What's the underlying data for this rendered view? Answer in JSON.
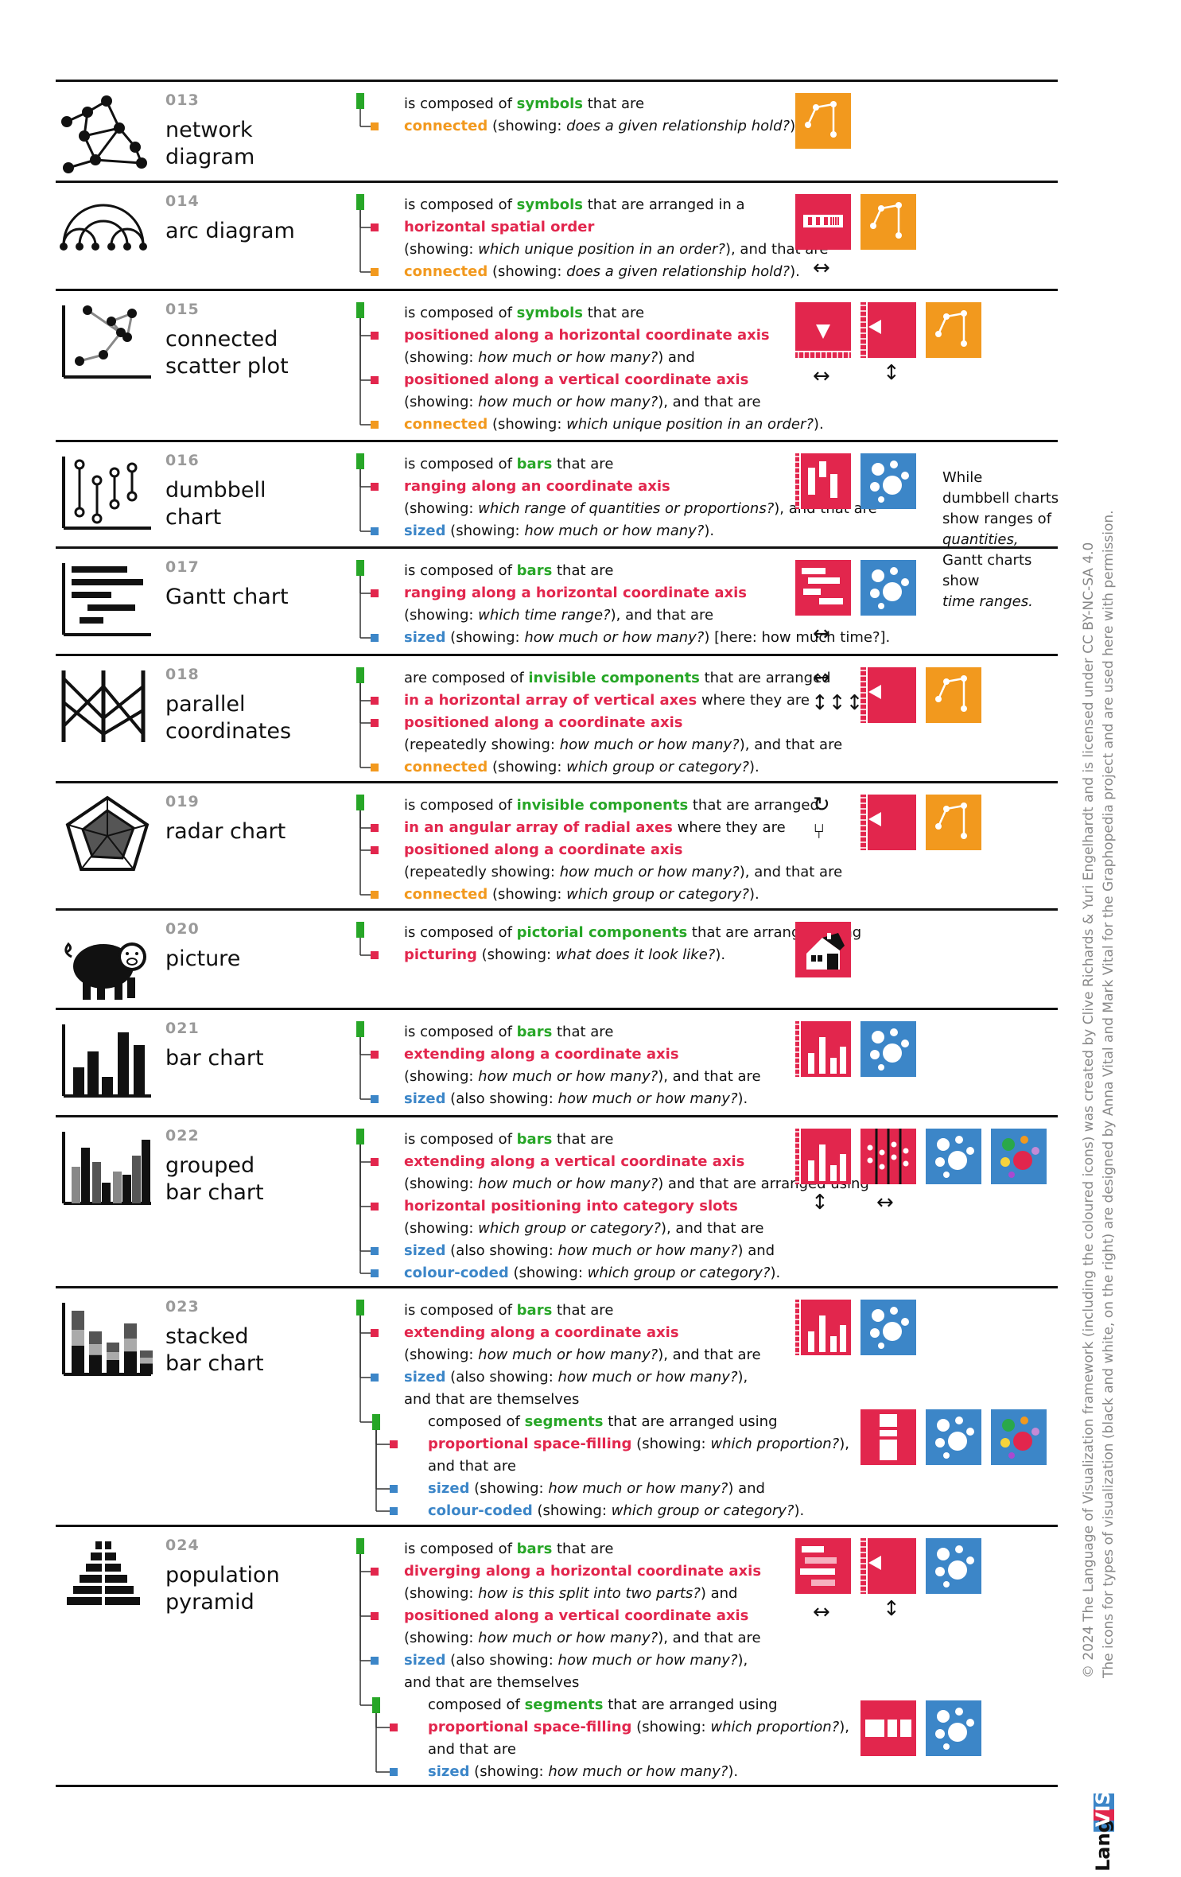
{
  "rows": [
    {
      "id": "013",
      "name": [
        "network",
        "diagram"
      ],
      "lines": [
        {
          "p": [
            {
              "t": "is composed of "
            },
            {
              "t": "symbols",
              "c": "g"
            },
            {
              "t": " that are"
            }
          ]
        },
        {
          "p": [
            {
              "t": "connected",
              "c": "o"
            },
            {
              "t": " (showing: "
            },
            {
              "t": "does a given relationship hold?",
              "c": "it"
            },
            {
              "t": ")."
            }
          ]
        }
      ]
    },
    {
      "id": "014",
      "name": [
        "arc diagram"
      ],
      "lines": [
        {
          "p": [
            {
              "t": "is composed of "
            },
            {
              "t": "symbols",
              "c": "g"
            },
            {
              "t": " that are arranged in a"
            }
          ]
        },
        {
          "p": [
            {
              "t": "horizontal spatial order",
              "c": "r"
            }
          ]
        },
        {
          "p": [
            {
              "t": "(showing: "
            },
            {
              "t": "which unique position in an order?",
              "c": "it"
            },
            {
              "t": "), and that are"
            }
          ]
        },
        {
          "p": [
            {
              "t": "connected",
              "c": "o"
            },
            {
              "t": " (showing: "
            },
            {
              "t": "does a given relationship hold?",
              "c": "it"
            },
            {
              "t": ")."
            }
          ]
        }
      ]
    },
    {
      "id": "015",
      "name": [
        "connected",
        "scatter plot"
      ],
      "lines": [
        {
          "p": [
            {
              "t": "is composed of "
            },
            {
              "t": "symbols",
              "c": "g"
            },
            {
              "t": " that are"
            }
          ]
        },
        {
          "p": [
            {
              "t": "positioned along a horizontal coordinate axis",
              "c": "r"
            }
          ]
        },
        {
          "p": [
            {
              "t": "(showing: "
            },
            {
              "t": "how much or how many?",
              "c": "it"
            },
            {
              "t": ") and"
            }
          ]
        },
        {
          "p": [
            {
              "t": "positioned along a vertical coordinate axis",
              "c": "r"
            }
          ]
        },
        {
          "p": [
            {
              "t": "(showing: "
            },
            {
              "t": "how much or how many?",
              "c": "it"
            },
            {
              "t": "), and that are"
            }
          ]
        },
        {
          "p": [
            {
              "t": "connected",
              "c": "o"
            },
            {
              "t": " (showing: "
            },
            {
              "t": "which unique position in an order?",
              "c": "it"
            },
            {
              "t": ")."
            }
          ]
        }
      ]
    },
    {
      "id": "016",
      "name": [
        "dumbbell",
        "chart"
      ],
      "lines": [
        {
          "p": [
            {
              "t": "is composed of "
            },
            {
              "t": "bars",
              "c": "g"
            },
            {
              "t": " that are"
            }
          ]
        },
        {
          "p": [
            {
              "t": "ranging along an coordinate axis",
              "c": "r"
            }
          ]
        },
        {
          "p": [
            {
              "t": "(showing: "
            },
            {
              "t": "which range of quantities or proportions?",
              "c": "it"
            },
            {
              "t": "), and that are"
            }
          ]
        },
        {
          "p": [
            {
              "t": "sized",
              "c": "b"
            },
            {
              "t": " (showing: "
            },
            {
              "t": "how much or how many?",
              "c": "it"
            },
            {
              "t": ")."
            }
          ]
        }
      ]
    },
    {
      "id": "017",
      "name": [
        "Gantt chart"
      ],
      "lines": [
        {
          "p": [
            {
              "t": "is composed of "
            },
            {
              "t": "bars",
              "c": "g"
            },
            {
              "t": " that are"
            }
          ]
        },
        {
          "p": [
            {
              "t": "ranging along a horizontal coordinate axis",
              "c": "r"
            }
          ]
        },
        {
          "p": [
            {
              "t": "(showing: "
            },
            {
              "t": "which time range?",
              "c": "it"
            },
            {
              "t": "), and that are"
            }
          ]
        },
        {
          "p": [
            {
              "t": "sized",
              "c": "b"
            },
            {
              "t": " (showing: "
            },
            {
              "t": "how much or how many?",
              "c": "it"
            },
            {
              "t": ") [here: how much time?]."
            }
          ]
        }
      ]
    },
    {
      "id": "018",
      "name": [
        "parallel",
        "coordinates"
      ],
      "lines": [
        {
          "p": [
            {
              "t": "are composed of "
            },
            {
              "t": "invisible components",
              "c": "g"
            },
            {
              "t": " that are arranged"
            }
          ]
        },
        {
          "p": [
            {
              "t": "in a horizontal array of vertical axes",
              "c": "r"
            },
            {
              "t": " where they are"
            }
          ]
        },
        {
          "p": [
            {
              "t": "positioned along a coordinate axis",
              "c": "r"
            }
          ]
        },
        {
          "p": [
            {
              "t": "(repeatedly showing: "
            },
            {
              "t": "how much or how many?",
              "c": "it"
            },
            {
              "t": "), and that are"
            }
          ]
        },
        {
          "p": [
            {
              "t": "connected",
              "c": "o"
            },
            {
              "t": " (showing: "
            },
            {
              "t": "which group or category?",
              "c": "it"
            },
            {
              "t": ")."
            }
          ]
        }
      ]
    },
    {
      "id": "019",
      "name": [
        "radar chart"
      ],
      "lines": [
        {
          "p": [
            {
              "t": "is composed of "
            },
            {
              "t": "invisible components",
              "c": "g"
            },
            {
              "t": " that are arranged"
            }
          ]
        },
        {
          "p": [
            {
              "t": "in an angular array of radial axes",
              "c": "r"
            },
            {
              "t": " where they are"
            }
          ]
        },
        {
          "p": [
            {
              "t": "positioned along a coordinate axis",
              "c": "r"
            }
          ]
        },
        {
          "p": [
            {
              "t": "(repeatedly showing: "
            },
            {
              "t": "how much or how many?",
              "c": "it"
            },
            {
              "t": "), and that are"
            }
          ]
        },
        {
          "p": [
            {
              "t": "connected",
              "c": "o"
            },
            {
              "t": " (showing: "
            },
            {
              "t": "which group or category?",
              "c": "it"
            },
            {
              "t": ")."
            }
          ]
        }
      ]
    },
    {
      "id": "020",
      "name": [
        "picture"
      ],
      "lines": [
        {
          "p": [
            {
              "t": "is composed of "
            },
            {
              "t": "pictorial components",
              "c": "g"
            },
            {
              "t": " that are arranged using"
            }
          ]
        },
        {
          "p": [
            {
              "t": "picturing",
              "c": "r"
            },
            {
              "t": " (showing: "
            },
            {
              "t": "what does it look like?",
              "c": "it"
            },
            {
              "t": ")."
            }
          ]
        }
      ]
    },
    {
      "id": "021",
      "name": [
        "bar chart"
      ],
      "lines": [
        {
          "p": [
            {
              "t": "is composed of "
            },
            {
              "t": "bars",
              "c": "g"
            },
            {
              "t": " that are"
            }
          ]
        },
        {
          "p": [
            {
              "t": "extending along a coordinate axis",
              "c": "r"
            }
          ]
        },
        {
          "p": [
            {
              "t": "(showing: "
            },
            {
              "t": "how much or how many?",
              "c": "it"
            },
            {
              "t": "), and that are"
            }
          ]
        },
        {
          "p": [
            {
              "t": "sized",
              "c": "b"
            },
            {
              "t": " (also showing: "
            },
            {
              "t": "how much or how many?",
              "c": "it"
            },
            {
              "t": ")."
            }
          ]
        }
      ]
    },
    {
      "id": "022",
      "name": [
        "grouped",
        "bar chart"
      ],
      "lines": [
        {
          "p": [
            {
              "t": "is composed of "
            },
            {
              "t": "bars",
              "c": "g"
            },
            {
              "t": " that are"
            }
          ]
        },
        {
          "p": [
            {
              "t": "extending along a vertical coordinate axis",
              "c": "r"
            }
          ]
        },
        {
          "p": [
            {
              "t": "(showing: "
            },
            {
              "t": "how much or how many?",
              "c": "it"
            },
            {
              "t": ") and that are arranged using"
            }
          ]
        },
        {
          "p": [
            {
              "t": "horizontal positioning into category slots",
              "c": "r"
            }
          ]
        },
        {
          "p": [
            {
              "t": "(showing: "
            },
            {
              "t": "which group or category?",
              "c": "it"
            },
            {
              "t": "), and that are"
            }
          ]
        },
        {
          "p": [
            {
              "t": "sized",
              "c": "b"
            },
            {
              "t": " (also showing: "
            },
            {
              "t": "how much or how many?",
              "c": "it"
            },
            {
              "t": ") and"
            }
          ]
        },
        {
          "p": [
            {
              "t": "colour-coded",
              "c": "b"
            },
            {
              "t": " (showing: "
            },
            {
              "t": "which group or category?",
              "c": "it"
            },
            {
              "t": ")."
            }
          ]
        }
      ]
    },
    {
      "id": "023",
      "name": [
        "stacked",
        "bar chart"
      ],
      "lines": [
        {
          "p": [
            {
              "t": "is composed of "
            },
            {
              "t": "bars",
              "c": "g"
            },
            {
              "t": " that are"
            }
          ]
        },
        {
          "p": [
            {
              "t": "extending along a coordinate axis",
              "c": "r"
            }
          ]
        },
        {
          "p": [
            {
              "t": "(showing: "
            },
            {
              "t": "how much or how many?",
              "c": "it"
            },
            {
              "t": "), and that are"
            }
          ]
        },
        {
          "p": [
            {
              "t": "sized",
              "c": "b"
            },
            {
              "t": " (also showing: "
            },
            {
              "t": "how much or how many?",
              "c": "it"
            },
            {
              "t": "),"
            }
          ]
        },
        {
          "p": [
            {
              "t": "and that are themselves"
            }
          ]
        },
        {
          "i": 1,
          "p": [
            {
              "t": "composed of "
            },
            {
              "t": "segments",
              "c": "g"
            },
            {
              "t": " that are arranged using"
            }
          ]
        },
        {
          "i": 1,
          "p": [
            {
              "t": "proportional space-filling",
              "c": "r"
            },
            {
              "t": " (showing: "
            },
            {
              "t": "which proportion?",
              "c": "it"
            },
            {
              "t": "),"
            }
          ]
        },
        {
          "i": 1,
          "p": [
            {
              "t": "and that are"
            }
          ]
        },
        {
          "i": 1,
          "p": [
            {
              "t": "sized",
              "c": "b"
            },
            {
              "t": " (showing: "
            },
            {
              "t": "how much or how many?",
              "c": "it"
            },
            {
              "t": ") and"
            }
          ]
        },
        {
          "i": 1,
          "p": [
            {
              "t": "colour-coded",
              "c": "b"
            },
            {
              "t": " (showing: "
            },
            {
              "t": "which group or category?",
              "c": "it"
            },
            {
              "t": ")."
            }
          ]
        }
      ]
    },
    {
      "id": "024",
      "name": [
        "population",
        "pyramid"
      ],
      "lines": [
        {
          "p": [
            {
              "t": "is composed of "
            },
            {
              "t": "bars",
              "c": "g"
            },
            {
              "t": " that are"
            }
          ]
        },
        {
          "p": [
            {
              "t": "diverging along a horizontal coordinate axis",
              "c": "r"
            }
          ]
        },
        {
          "p": [
            {
              "t": "(showing: "
            },
            {
              "t": "how is this split into two parts?",
              "c": "it"
            },
            {
              "t": ") and"
            }
          ]
        },
        {
          "p": [
            {
              "t": "positioned along a vertical coordinate axis",
              "c": "r"
            }
          ]
        },
        {
          "p": [
            {
              "t": "(showing: "
            },
            {
              "t": "how much or how many?",
              "c": "it"
            },
            {
              "t": "), and that are"
            }
          ]
        },
        {
          "p": [
            {
              "t": "sized",
              "c": "b"
            },
            {
              "t": " (also showing: "
            },
            {
              "t": "how much or how many?",
              "c": "it"
            },
            {
              "t": "),"
            }
          ]
        },
        {
          "p": [
            {
              "t": "and that are themselves"
            }
          ]
        },
        {
          "i": 1,
          "p": [
            {
              "t": "composed of "
            },
            {
              "t": "segments",
              "c": "g"
            },
            {
              "t": " that are arranged using"
            }
          ]
        },
        {
          "i": 1,
          "p": [
            {
              "t": "proportional space-filling",
              "c": "r"
            },
            {
              "t": " (showing: "
            },
            {
              "t": "which proportion?",
              "c": "it"
            },
            {
              "t": "),"
            }
          ]
        },
        {
          "i": 1,
          "p": [
            {
              "t": "and that are"
            }
          ]
        },
        {
          "i": 1,
          "p": [
            {
              "t": "sized",
              "c": "b"
            },
            {
              "t": " (showing: "
            },
            {
              "t": "how much or how many?",
              "c": "it"
            },
            {
              "t": ")."
            }
          ]
        }
      ]
    }
  ],
  "side_note": [
    "While",
    "dumbbell charts",
    "show ranges of",
    "quantities,",
    "Gantt charts",
    "show",
    "time ranges."
  ],
  "credit": {
    "line1": "© 2024  The Language of Visualization framework (including the coloured icons) was created by Clive Richards & Yuri Engelhardt and is licensed under CC BY-NC-SA 4.0",
    "line2": "The icons for types of visualization (black and white, on the right) are designed by Anna Vital and Mark Vital for the Graphopedia project and are used here with permission."
  },
  "logo": {
    "part1": "Lang",
    "part2": "VIS"
  },
  "colors": {
    "green": "#27a627",
    "red": "#e2264d",
    "orange": "#f2991e",
    "blue": "#3c86c8",
    "black": "#111111"
  }
}
